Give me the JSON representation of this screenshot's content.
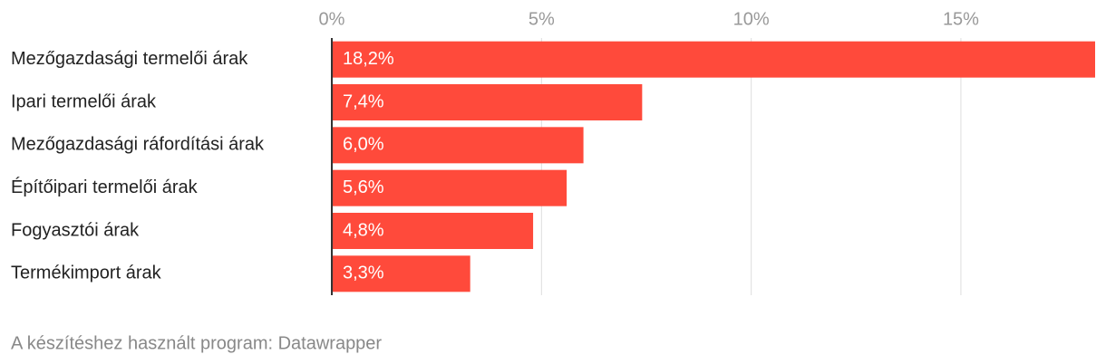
{
  "chart_data": {
    "type": "bar",
    "orientation": "horizontal",
    "categories": [
      "Mezőgazdasági termelői árak",
      "Ipari termelői árak",
      "Mezőgazdasági ráfordítási árak",
      "Építőipari termelői árak",
      "Fogyasztói árak",
      "Termékimport árak"
    ],
    "values": [
      18.2,
      7.4,
      6.0,
      5.6,
      4.8,
      3.3
    ],
    "value_labels": [
      "18,2%",
      "7,4%",
      "6,0%",
      "5,6%",
      "4,8%",
      "3,3%"
    ],
    "color": "#ff4a3b",
    "xlim": [
      0,
      18.2
    ],
    "xticks": [
      {
        "value": 0,
        "label": "0%"
      },
      {
        "value": 5,
        "label": "5%"
      },
      {
        "value": 10,
        "label": "10%"
      },
      {
        "value": 15,
        "label": "15%"
      }
    ],
    "grid": true,
    "source": "A készítéshez használt program: Datawrapper"
  }
}
